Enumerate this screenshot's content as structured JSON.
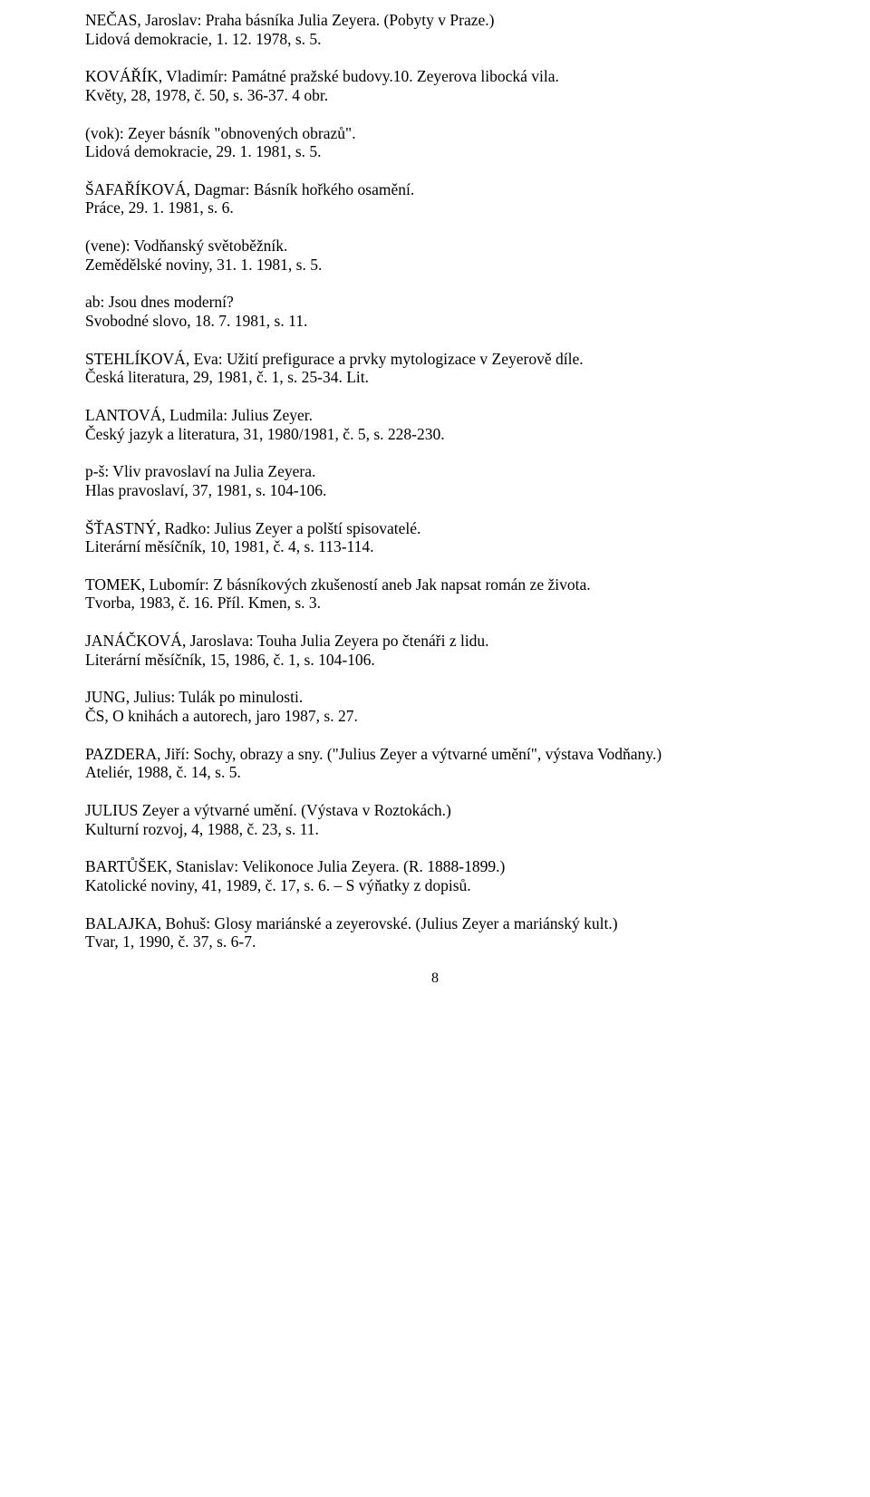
{
  "entries": [
    {
      "lines": [
        "NEČAS, Jaroslav: Praha básníka Julia Zeyera. (Pobyty v Praze.)",
        "Lidová demokracie, 1. 12. 1978, s. 5."
      ]
    },
    {
      "lines": [
        "KOVÁŘÍK, Vladimír: Památné pražské budovy.10. Zeyerova libocká vila.",
        "Květy, 28, 1978, č. 50, s. 36-37. 4 obr."
      ]
    },
    {
      "lines": [
        "(vok): Zeyer básník \"obnovených obrazů\".",
        "Lidová demokracie, 29. 1. 1981, s. 5."
      ]
    },
    {
      "lines": [
        "ŠAFAŘÍKOVÁ, Dagmar: Básník hořkého osamění.",
        "Práce, 29. 1. 1981, s. 6."
      ]
    },
    {
      "lines": [
        "(vene): Vodňanský světoběžník.",
        "Zemědělské noviny, 31. 1. 1981, s. 5."
      ]
    },
    {
      "lines": [
        "ab: Jsou dnes moderní?",
        "Svobodné slovo, 18. 7. 1981, s. 11."
      ]
    },
    {
      "lines": [
        "STEHLÍKOVÁ, Eva: Užití prefigurace a prvky mytologizace v Zeyerově díle.",
        "Česká literatura, 29, 1981, č. 1, s. 25-34. Lit."
      ]
    },
    {
      "lines": [
        "LANTOVÁ, Ludmila: Julius Zeyer.",
        "Český jazyk a literatura, 31, 1980/1981, č. 5, s. 228-230."
      ]
    },
    {
      "lines": [
        "p-š: Vliv pravoslaví na Julia Zeyera.",
        "Hlas pravoslaví, 37, 1981, s. 104-106."
      ]
    },
    {
      "lines": [
        "ŠŤASTNÝ, Radko: Julius Zeyer a polští spisovatelé.",
        "Literární měsíčník, 10, 1981, č. 4, s. 113-114."
      ]
    },
    {
      "lines": [
        "TOMEK, Lubomír: Z básníkových zkušeností aneb Jak napsat román ze života.",
        "Tvorba, 1983, č. 16. Příl. Kmen, s. 3."
      ]
    },
    {
      "lines": [
        "JANÁČKOVÁ, Jaroslava: Touha Julia Zeyera po čtenáři z lidu.",
        "Literární měsíčník, 15, 1986, č. 1, s. 104-106."
      ]
    },
    {
      "lines": [
        "JUNG, Julius: Tulák po minulosti.",
        "ČS, O knihách a autorech, jaro 1987, s. 27."
      ]
    },
    {
      "justify": true,
      "lines": [
        "PAZDERA, Jiří: Sochy, obrazy a sny. (\"Julius Zeyer a výtvarné umění\", výstava Vodňany.)",
        "Ateliér, 1988, č. 14, s. 5."
      ]
    },
    {
      "lines": [
        "JULIUS Zeyer a výtvarné umění. (Výstava v Roztokách.)",
        "Kulturní rozvoj, 4, 1988, č. 23, s. 11."
      ]
    },
    {
      "lines": [
        "BARTŮŠEK, Stanislav: Velikonoce Julia Zeyera. (R. 1888-1899.)",
        "Katolické noviny, 41, 1989, č. 17, s. 6. – S výňatky z dopisů."
      ]
    },
    {
      "lines": [
        "BALAJKA, Bohuš: Glosy mariánské a zeyerovské. (Julius Zeyer a mariánský kult.)",
        "Tvar, 1, 1990, č. 37, s. 6-7."
      ]
    }
  ],
  "page_number": "8"
}
